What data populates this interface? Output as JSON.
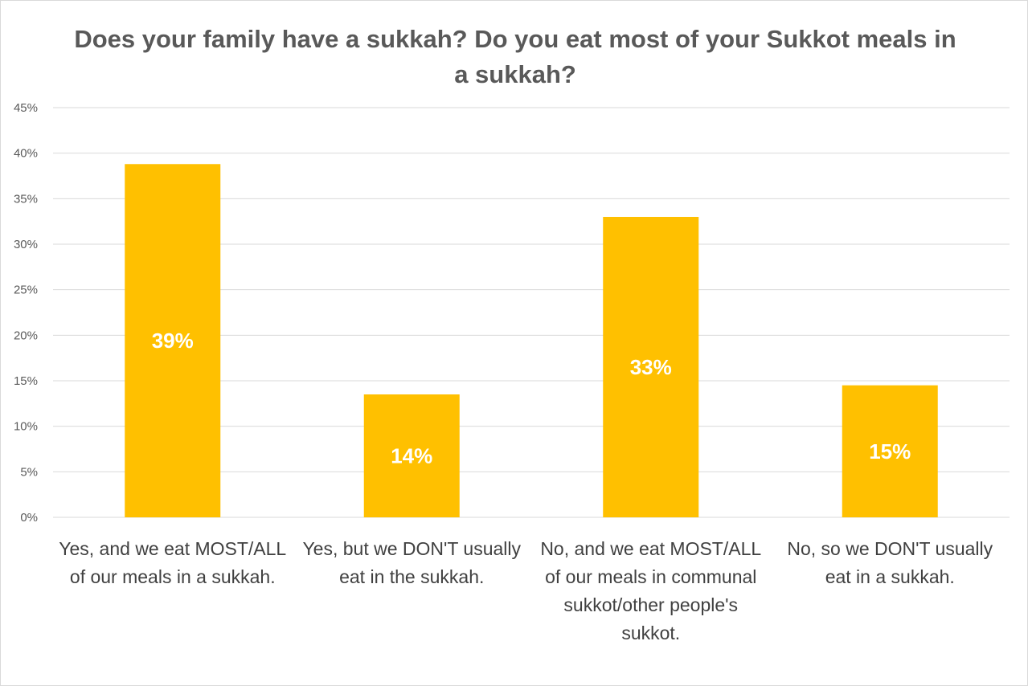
{
  "chart_data": {
    "type": "bar",
    "title": "Does your family have a sukkah? Do you eat most of your Sukkot meals in a sukkah?",
    "categories": [
      "Yes, and we eat MOST/ALL of our meals in a sukkah.",
      "Yes, but we DON'T usually eat in the sukkah.",
      "No, and we eat MOST/ALL of our meals in communal sukkot/other people's sukkot.",
      "No, so we DON'T usually eat in a sukkah."
    ],
    "values": [
      0.388,
      0.135,
      0.33,
      0.145
    ],
    "data_labels": [
      "39%",
      "14%",
      "33%",
      "15%"
    ],
    "ylim": [
      0,
      0.45
    ],
    "y_ticks": [
      0,
      0.05,
      0.1,
      0.15,
      0.2,
      0.25,
      0.3,
      0.35,
      0.4,
      0.45
    ],
    "y_tick_labels": [
      "0%",
      "5%",
      "10%",
      "15%",
      "20%",
      "25%",
      "30%",
      "35%",
      "40%",
      "45%"
    ],
    "bar_color": "#FFC000",
    "gridline_color": "#D9D9D9",
    "grid": true,
    "legend": "none",
    "xlabel": "",
    "ylabel": ""
  }
}
